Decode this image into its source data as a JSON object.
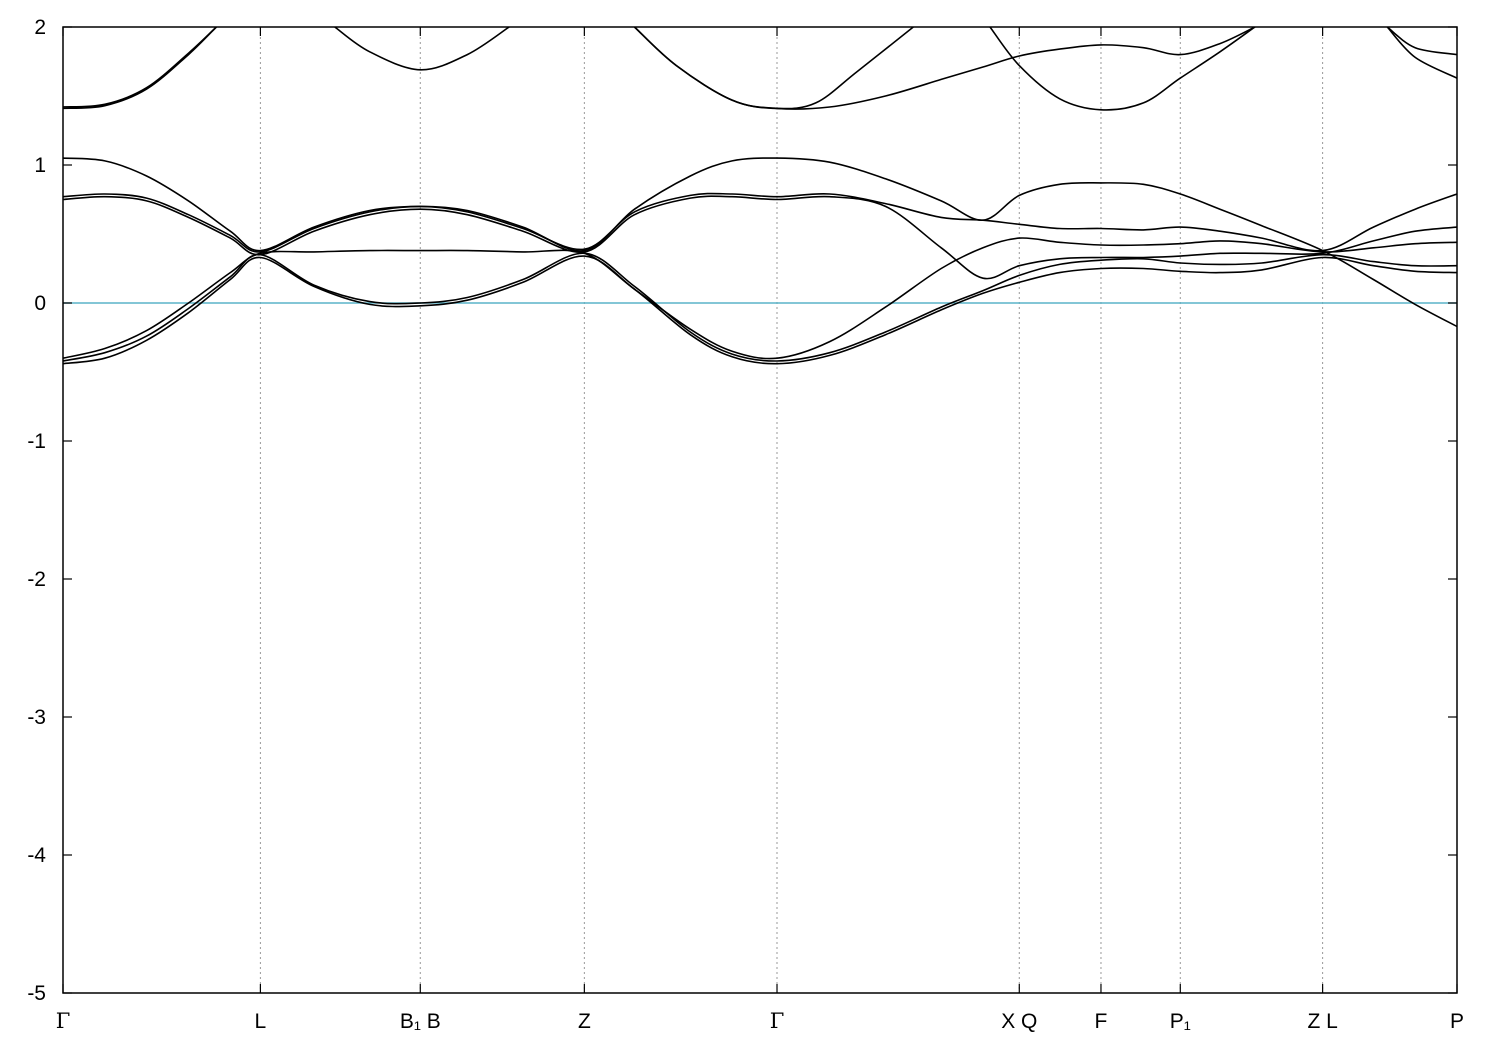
{
  "chart_data": {
    "type": "line",
    "title": "",
    "xlabel": "",
    "ylabel": "",
    "ylim": [
      -5,
      2
    ],
    "yticks": [
      2,
      1,
      0,
      -1,
      -2,
      -3,
      -4,
      -5
    ],
    "grid": "vertical dotted lines at high-symmetry points",
    "fermi_level": {
      "y": 0,
      "color": "#5ab4c8"
    },
    "band_color": "#000000",
    "xlim": [
      0,
      10
    ],
    "high_symmetry_points": [
      {
        "x": 0.0,
        "label": "Γ"
      },
      {
        "x": 1.416,
        "label": "L"
      },
      {
        "x": 2.563,
        "label": "B₁ B"
      },
      {
        "x": 3.74,
        "label": "Z"
      },
      {
        "x": 5.122,
        "label": "Γ"
      },
      {
        "x": 6.86,
        "label": "X Q"
      },
      {
        "x": 7.446,
        "label": "F"
      },
      {
        "x": 8.015,
        "label": "P₁"
      },
      {
        "x": 9.036,
        "label": "Z L"
      },
      {
        "x": 10.0,
        "label": "P"
      }
    ],
    "series": [
      {
        "x": [
          0,
          0.3,
          0.6,
          0.9,
          1.2,
          1.416,
          1.8,
          2.2,
          2.563,
          2.9,
          3.3,
          3.74,
          4.1,
          4.5,
          4.8,
          5.122,
          5.5,
          5.9,
          6.3,
          6.6,
          6.86,
          7.15,
          7.446,
          7.75,
          8.015,
          8.3,
          8.6,
          9.036,
          9.4,
          9.7,
          10
        ],
        "y": [
          -0.44,
          -0.4,
          -0.27,
          -0.07,
          0.17,
          0.33,
          0.12,
          -0.01,
          -0.02,
          0.02,
          0.15,
          0.34,
          0.1,
          -0.23,
          -0.39,
          -0.44,
          -0.38,
          -0.23,
          -0.05,
          0.07,
          0.15,
          0.22,
          0.25,
          0.25,
          0.23,
          0.22,
          0.24,
          0.33,
          0.27,
          0.23,
          0.22
        ]
      },
      {
        "x": [
          0,
          0.3,
          0.6,
          0.9,
          1.2,
          1.416,
          1.8,
          2.2,
          2.563,
          2.9,
          3.3,
          3.74,
          4.1,
          4.5,
          4.8,
          5.122,
          5.5,
          5.9,
          6.3,
          6.6,
          6.86,
          7.15,
          7.446,
          7.75,
          8.015,
          8.3,
          8.6,
          9.036,
          9.4,
          9.7,
          10
        ],
        "y": [
          -0.42,
          -0.36,
          -0.24,
          -0.04,
          0.19,
          0.35,
          0.13,
          0.01,
          0.0,
          0.04,
          0.17,
          0.36,
          0.12,
          -0.21,
          -0.37,
          -0.42,
          -0.36,
          -0.21,
          -0.03,
          0.09,
          0.2,
          0.28,
          0.31,
          0.32,
          0.29,
          0.28,
          0.29,
          0.35,
          0.3,
          0.27,
          0.27
        ]
      },
      {
        "x": [
          0,
          0.3,
          0.6,
          0.9,
          1.2,
          1.416,
          1.8,
          2.2,
          2.563,
          2.9,
          3.3,
          3.74,
          4.1,
          4.5,
          4.8,
          5.122,
          5.5,
          5.9,
          6.3,
          6.6,
          6.86,
          7.15,
          7.446,
          7.75,
          8.015,
          8.3,
          8.6,
          9.036,
          9.4,
          9.7,
          10
        ],
        "y": [
          -0.4,
          -0.33,
          -0.2,
          0.0,
          0.22,
          0.36,
          0.37,
          0.38,
          0.38,
          0.38,
          0.37,
          0.36,
          0.1,
          -0.19,
          -0.35,
          -0.4,
          -0.28,
          -0.03,
          0.25,
          0.4,
          0.47,
          0.44,
          0.42,
          0.42,
          0.43,
          0.45,
          0.43,
          0.37,
          0.4,
          0.43,
          0.44
        ]
      },
      {
        "x": [
          0,
          0.3,
          0.6,
          0.9,
          1.2,
          1.416,
          1.8,
          2.2,
          2.563,
          2.9,
          3.3,
          3.74,
          4.1,
          4.5,
          4.8,
          5.122,
          5.5,
          5.9,
          6.3,
          6.6,
          6.86,
          7.15,
          7.446,
          7.75,
          8.015,
          8.3,
          8.6,
          9.036,
          9.4,
          9.7,
          10
        ],
        "y": [
          0.75,
          0.77,
          0.74,
          0.62,
          0.47,
          0.35,
          0.52,
          0.64,
          0.68,
          0.64,
          0.52,
          0.37,
          0.64,
          0.76,
          0.77,
          0.75,
          0.77,
          0.7,
          0.4,
          0.18,
          0.27,
          0.32,
          0.33,
          0.33,
          0.34,
          0.36,
          0.36,
          0.36,
          0.45,
          0.52,
          0.55
        ]
      },
      {
        "x": [
          0,
          0.3,
          0.6,
          0.9,
          1.2,
          1.416,
          1.8,
          2.2,
          2.563,
          2.9,
          3.3,
          3.74,
          4.1,
          4.5,
          4.8,
          5.122,
          5.5,
          5.9,
          6.3,
          6.6,
          6.86,
          7.15,
          7.446,
          7.75,
          8.015,
          8.3,
          8.6,
          9.036,
          9.4,
          9.7,
          10
        ],
        "y": [
          0.77,
          0.79,
          0.76,
          0.64,
          0.49,
          0.37,
          0.54,
          0.66,
          0.7,
          0.66,
          0.54,
          0.39,
          0.66,
          0.78,
          0.79,
          0.77,
          0.79,
          0.72,
          0.62,
          0.6,
          0.57,
          0.54,
          0.54,
          0.53,
          0.55,
          0.52,
          0.47,
          0.38,
          0.55,
          0.68,
          0.79
        ]
      },
      {
        "x": [
          0,
          0.3,
          0.6,
          0.9,
          1.2,
          1.416,
          1.8,
          2.2,
          2.563,
          2.9,
          3.3,
          3.74,
          4.1,
          4.5,
          4.8,
          5.122,
          5.5,
          5.9,
          6.3,
          6.6,
          6.86,
          7.15,
          7.446,
          7.75,
          8.015,
          8.3,
          8.6,
          9.036,
          9.4,
          9.7,
          10
        ],
        "y": [
          1.05,
          1.03,
          0.92,
          0.74,
          0.52,
          0.38,
          0.55,
          0.67,
          0.7,
          0.67,
          0.55,
          0.38,
          0.68,
          0.92,
          1.03,
          1.05,
          1.02,
          0.9,
          0.74,
          0.6,
          0.78,
          0.86,
          0.87,
          0.86,
          0.79,
          0.68,
          0.56,
          0.38,
          0.17,
          -0.01,
          -0.17
        ]
      },
      {
        "x": [
          0,
          0.3,
          0.6,
          0.9,
          1.1
        ],
        "y": [
          1.41,
          1.43,
          1.55,
          1.8,
          2.0
        ]
      },
      {
        "x": [
          0,
          0.3,
          0.6,
          0.9,
          1.1
        ],
        "y": [
          1.42,
          1.44,
          1.56,
          1.81,
          2.0
        ]
      },
      {
        "x": [
          1.95,
          2.2,
          2.563,
          2.9,
          3.2
        ],
        "y": [
          2.0,
          1.82,
          1.69,
          1.8,
          2.0
        ]
      },
      {
        "x": [
          4.1,
          4.4,
          4.8,
          5.122,
          5.4,
          5.7,
          6.1
        ],
        "y": [
          2.0,
          1.72,
          1.47,
          1.41,
          1.45,
          1.68,
          2.0
        ]
      },
      {
        "x": [
          4.1,
          4.4,
          4.8,
          5.122,
          5.5,
          5.9,
          6.3,
          6.6,
          6.86,
          7.15,
          7.446,
          7.75,
          8.015,
          8.3,
          8.55
        ],
        "y": [
          2.0,
          1.72,
          1.47,
          1.41,
          1.42,
          1.5,
          1.62,
          1.71,
          1.79,
          1.84,
          1.87,
          1.85,
          1.8,
          1.88,
          2.0
        ]
      },
      {
        "x": [
          6.65,
          6.86,
          7.15,
          7.446,
          7.75,
          8.015,
          8.3,
          8.55
        ],
        "y": [
          2.0,
          1.72,
          1.48,
          1.4,
          1.45,
          1.63,
          1.82,
          2.0
        ]
      },
      {
        "x": [
          9.5,
          9.7,
          10
        ],
        "y": [
          2.0,
          1.85,
          1.8
        ]
      },
      {
        "x": [
          9.5,
          9.7,
          10
        ],
        "y": [
          2.0,
          1.78,
          1.63
        ]
      }
    ]
  }
}
